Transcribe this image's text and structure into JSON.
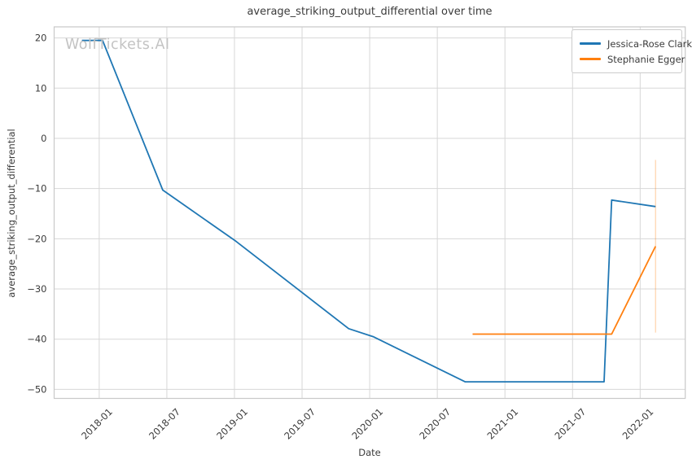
{
  "colors": {
    "background": "#ffffff",
    "grid": "#d7d7d7",
    "spine": "#c9c9c9",
    "text": "#3b3b3b",
    "watermark": "#c3c3c3",
    "series_blue": "#1f77b4",
    "series_orange": "#ff7f0e"
  },
  "chart_data": {
    "type": "line",
    "title": "average_striking_output_differential over time",
    "xlabel": "Date",
    "ylabel": "average_striking_output_differential",
    "watermark": "WolfTickets.AI",
    "grid": true,
    "legend_position": "upper right",
    "xlim": [
      "2017-09-01",
      "2022-05-01"
    ],
    "ylim": [
      -51.8,
      22.2
    ],
    "x_tick_dates": [
      "2018-01-01",
      "2018-07-01",
      "2019-01-01",
      "2019-07-01",
      "2020-01-01",
      "2020-07-01",
      "2021-01-01",
      "2021-07-01",
      "2022-01-01"
    ],
    "x_tick_labels": [
      "2018-01",
      "2018-07",
      "2019-01",
      "2019-07",
      "2020-01",
      "2020-07",
      "2021-01",
      "2021-07",
      "2022-01"
    ],
    "y_ticks": [
      {
        "value": 20,
        "label": "20"
      },
      {
        "value": 10,
        "label": "10"
      },
      {
        "value": 0,
        "label": "0"
      },
      {
        "value": -10,
        "label": "−10"
      },
      {
        "value": -20,
        "label": "−20"
      },
      {
        "value": -30,
        "label": "−30"
      },
      {
        "value": -40,
        "label": "−40"
      },
      {
        "value": -50,
        "label": "−50"
      }
    ],
    "series": [
      {
        "name": "Jessica-Rose Clark",
        "color": "#1f77b4",
        "points": [
          [
            "2017-11-15",
            19.5
          ],
          [
            "2018-01-10",
            19.5
          ],
          [
            "2018-06-20",
            -10.3
          ],
          [
            "2019-01-05",
            -20.5
          ],
          [
            "2019-11-05",
            -37.9
          ],
          [
            "2020-01-10",
            -39.5
          ],
          [
            "2020-09-15",
            -48.5
          ],
          [
            "2021-09-25",
            -48.5
          ],
          [
            "2021-10-15",
            -12.3
          ],
          [
            "2022-02-12",
            -13.6
          ]
        ]
      },
      {
        "name": "Stephanie Egger",
        "color": "#ff7f0e",
        "points": [
          [
            "2020-10-05",
            -39.0
          ],
          [
            "2021-10-15",
            -39.0
          ],
          [
            "2022-02-12",
            -21.5
          ]
        ]
      }
    ],
    "error_bars": [
      {
        "series": "Stephanie Egger",
        "date": "2022-02-12",
        "from": -38.7,
        "to": -4.3,
        "opacity": 0.3
      }
    ]
  }
}
